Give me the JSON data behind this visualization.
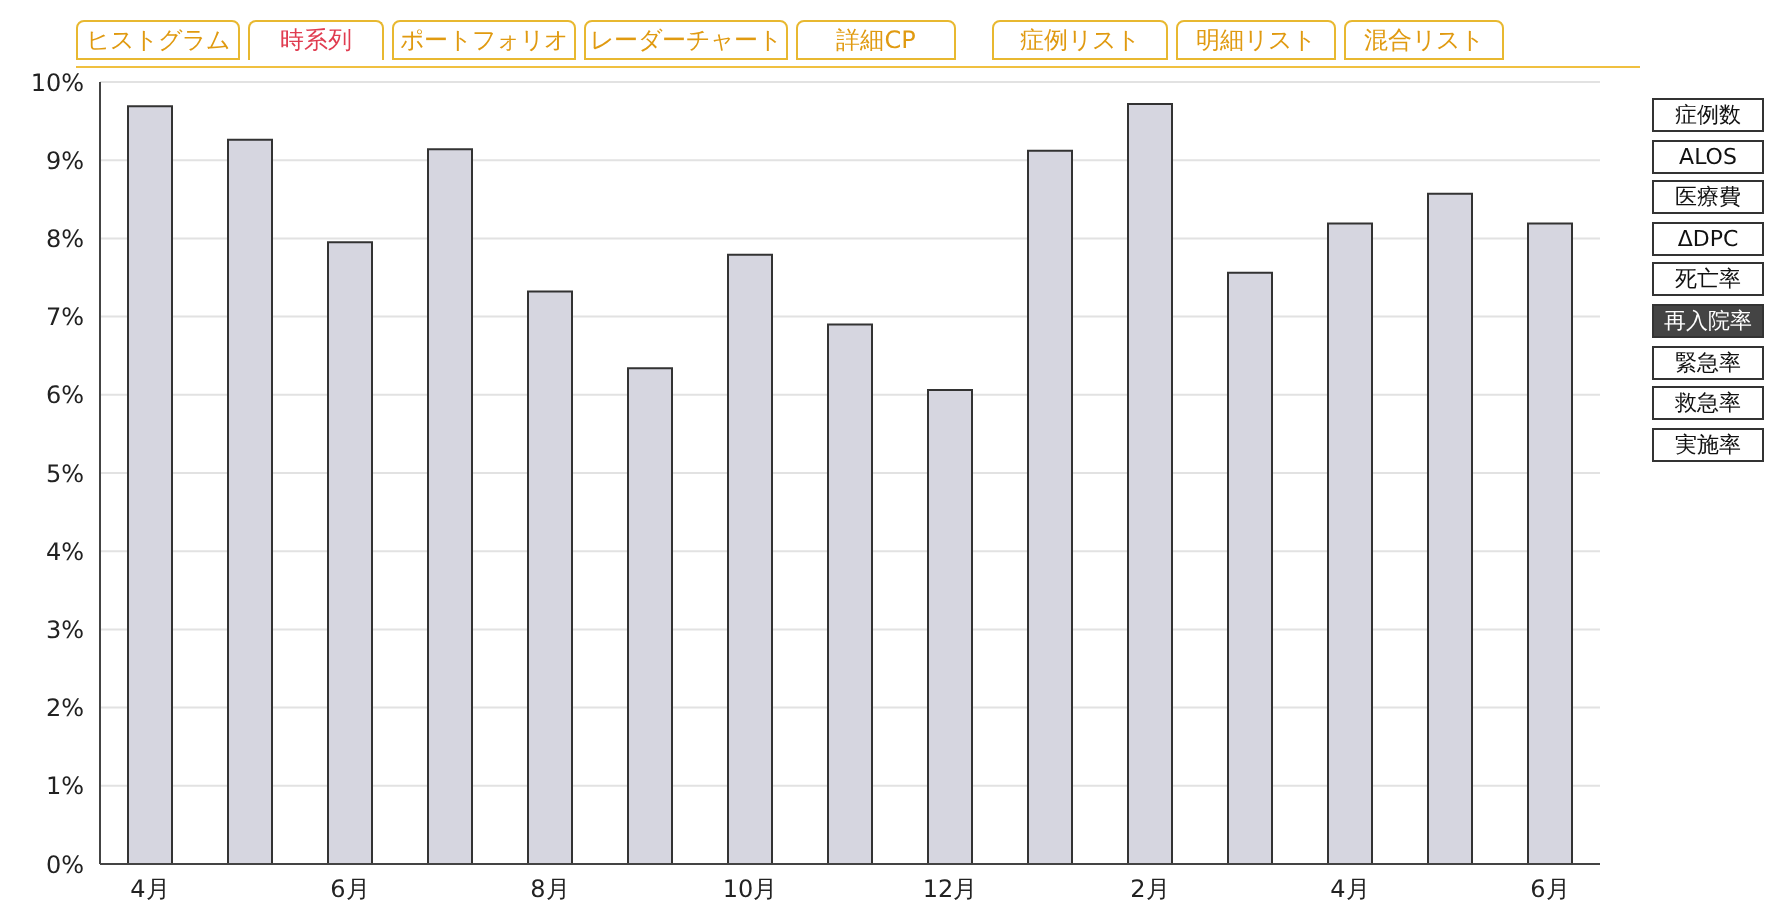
{
  "chart_data": {
    "type": "bar",
    "categories": [
      "4月",
      null,
      "6月",
      null,
      "8月",
      null,
      "10月",
      null,
      "12月",
      null,
      "2月",
      null,
      "4月",
      null,
      "6月"
    ],
    "values": [
      9.69,
      9.26,
      7.95,
      9.14,
      7.32,
      6.34,
      7.79,
      6.9,
      6.06,
      9.12,
      9.72,
      7.56,
      8.19,
      8.57,
      8.19
    ],
    "color": "#d6d6e0",
    "ylim": [
      0,
      10
    ],
    "yticks": [
      {
        "value": 0,
        "label": "0%"
      },
      {
        "value": 1,
        "label": "1%"
      },
      {
        "value": 2,
        "label": "2%"
      },
      {
        "value": 3,
        "label": "3%"
      },
      {
        "value": 4,
        "label": "4%"
      },
      {
        "value": 5,
        "label": "5%"
      },
      {
        "value": 6,
        "label": "6%"
      },
      {
        "value": 7,
        "label": "7%"
      },
      {
        "value": 8,
        "label": "8%"
      },
      {
        "value": 9,
        "label": "9%"
      },
      {
        "value": 10,
        "label": "10%"
      }
    ],
    "grid": "y",
    "annotations": [
      "ヒストグラム",
      "時系列",
      "ポートフォリオ",
      "レーダーチャート",
      "詳細CP",
      "症例リスト",
      "明細リスト",
      "混合リスト",
      "症例数",
      "ALOS",
      "医療費",
      "ΔDPC",
      "死亡率",
      "再入院率",
      "緊急率",
      "救急率",
      "実施率"
    ]
  }
}
